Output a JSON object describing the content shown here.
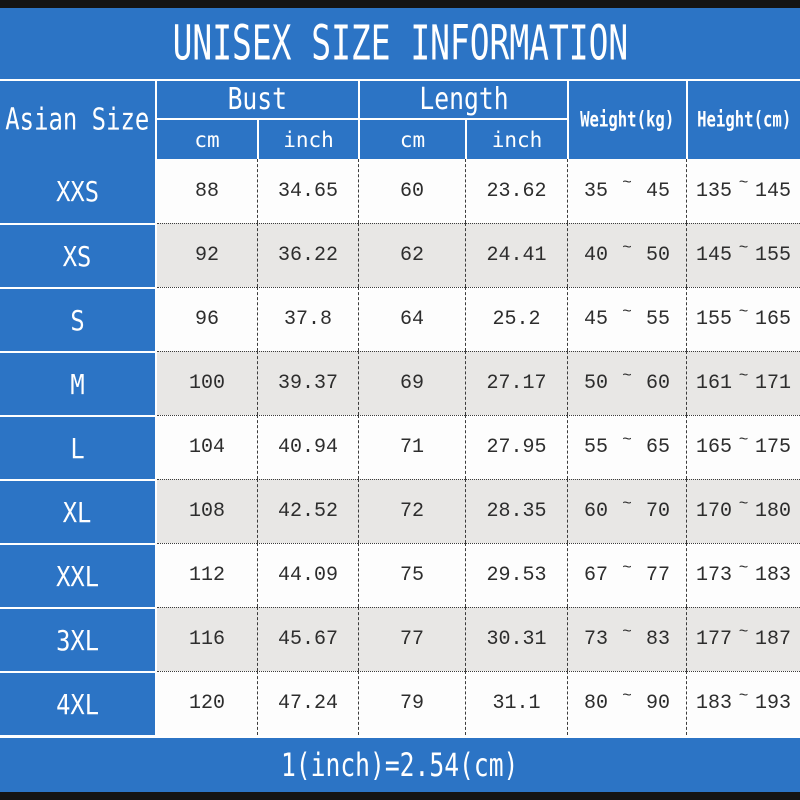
{
  "title": "UNISEX SIZE INFORMATION",
  "footer": "1(inch)=2.54(cm)",
  "tilde": "~",
  "colors": {
    "blue": "#2c74c5",
    "row_white": "#fdfdfd",
    "row_gray": "#e8e7e5",
    "text_dark": "#2d2d2d",
    "text_white": "#ffffff",
    "top_bottom_bar": "#141414"
  },
  "header": {
    "corner": "Asian Size",
    "bust": "Bust",
    "length": "Length",
    "cm": "cm",
    "inch": "inch",
    "weight": "Weight(kg)",
    "height": "Height(cm)"
  },
  "rows": [
    {
      "size": "XXS",
      "bust_cm": "88",
      "bust_inch": "34.65",
      "len_cm": "60",
      "len_inch": "23.62",
      "w_min": "35",
      "w_max": "45",
      "h_min": "135",
      "h_max": "145"
    },
    {
      "size": "XS",
      "bust_cm": "92",
      "bust_inch": "36.22",
      "len_cm": "62",
      "len_inch": "24.41",
      "w_min": "40",
      "w_max": "50",
      "h_min": "145",
      "h_max": "155"
    },
    {
      "size": "S",
      "bust_cm": "96",
      "bust_inch": "37.8",
      "len_cm": "64",
      "len_inch": "25.2",
      "w_min": "45",
      "w_max": "55",
      "h_min": "155",
      "h_max": "165"
    },
    {
      "size": "M",
      "bust_cm": "100",
      "bust_inch": "39.37",
      "len_cm": "69",
      "len_inch": "27.17",
      "w_min": "50",
      "w_max": "60",
      "h_min": "161",
      "h_max": "171"
    },
    {
      "size": "L",
      "bust_cm": "104",
      "bust_inch": "40.94",
      "len_cm": "71",
      "len_inch": "27.95",
      "w_min": "55",
      "w_max": "65",
      "h_min": "165",
      "h_max": "175"
    },
    {
      "size": "XL",
      "bust_cm": "108",
      "bust_inch": "42.52",
      "len_cm": "72",
      "len_inch": "28.35",
      "w_min": "60",
      "w_max": "70",
      "h_min": "170",
      "h_max": "180"
    },
    {
      "size": "XXL",
      "bust_cm": "112",
      "bust_inch": "44.09",
      "len_cm": "75",
      "len_inch": "29.53",
      "w_min": "67",
      "w_max": "77",
      "h_min": "173",
      "h_max": "183"
    },
    {
      "size": "3XL",
      "bust_cm": "116",
      "bust_inch": "45.67",
      "len_cm": "77",
      "len_inch": "30.31",
      "w_min": "73",
      "w_max": "83",
      "h_min": "177",
      "h_max": "187"
    },
    {
      "size": "4XL",
      "bust_cm": "120",
      "bust_inch": "47.24",
      "len_cm": "79",
      "len_inch": "31.1",
      "w_min": "80",
      "w_max": "90",
      "h_min": "183",
      "h_max": "193"
    }
  ],
  "chart_data": {
    "type": "table",
    "title": "UNISEX SIZE INFORMATION",
    "columns": [
      "Asian Size",
      "Bust cm",
      "Bust inch",
      "Length cm",
      "Length inch",
      "Weight(kg)",
      "Height(cm)"
    ],
    "rows": [
      [
        "XXS",
        88,
        34.65,
        60,
        23.62,
        "35~45",
        "135~145"
      ],
      [
        "XS",
        92,
        36.22,
        62,
        24.41,
        "40~50",
        "145~155"
      ],
      [
        "S",
        96,
        37.8,
        64,
        25.2,
        "45~55",
        "155~165"
      ],
      [
        "M",
        100,
        39.37,
        69,
        27.17,
        "50~60",
        "161~171"
      ],
      [
        "L",
        104,
        40.94,
        71,
        27.95,
        "55~65",
        "165~175"
      ],
      [
        "XL",
        108,
        42.52,
        72,
        28.35,
        "60~70",
        "170~180"
      ],
      [
        "XXL",
        112,
        44.09,
        75,
        29.53,
        "67~77",
        "173~183"
      ],
      [
        "3XL",
        116,
        45.67,
        77,
        30.31,
        "73~83",
        "177~187"
      ],
      [
        "4XL",
        120,
        47.24,
        79,
        31.1,
        "80~90",
        "183~193"
      ]
    ],
    "note": "1(inch)=2.54(cm)"
  }
}
